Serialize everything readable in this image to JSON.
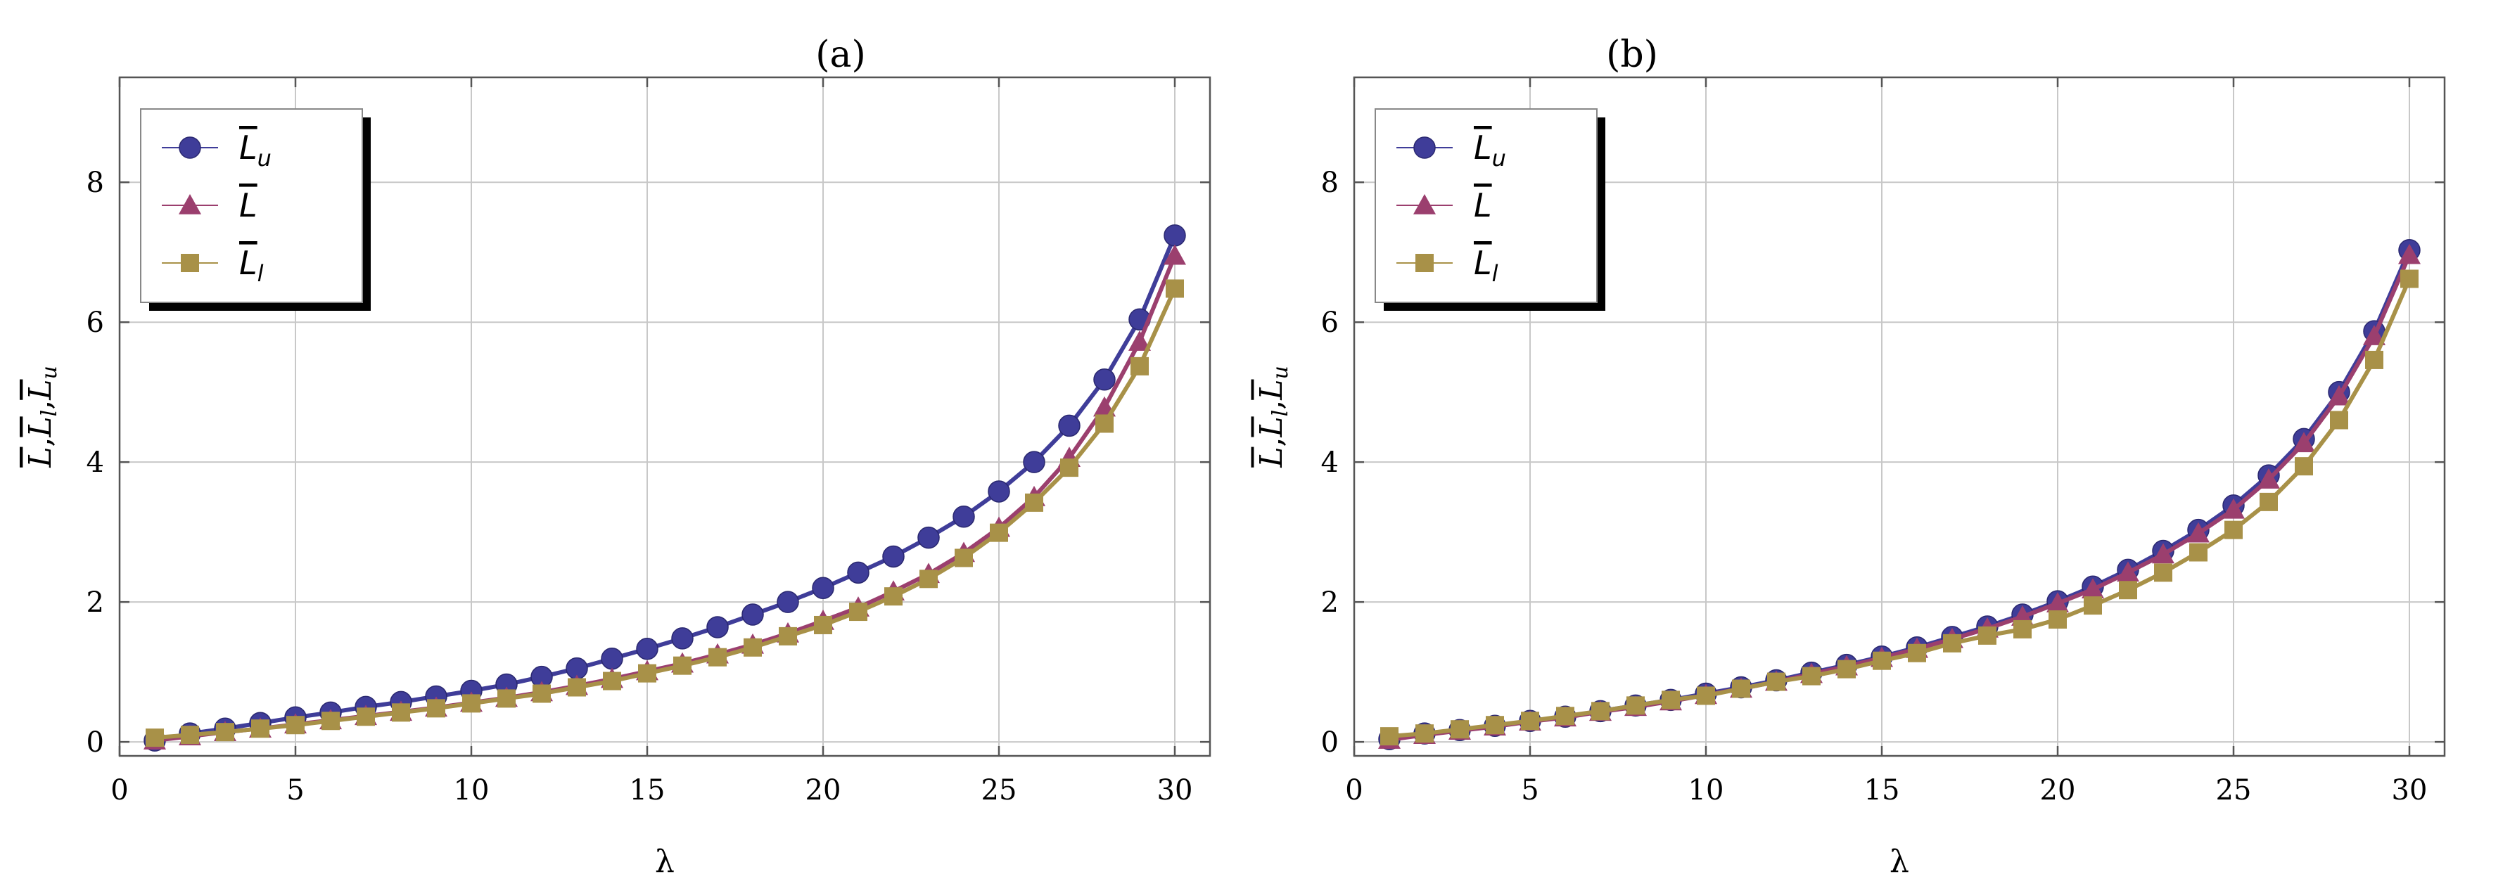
{
  "chart_data": [
    {
      "type": "line",
      "title": "(a)",
      "xlabel": "λ",
      "ylabel_parts": [
        "L",
        ",",
        "L",
        "l",
        ",",
        "L",
        "u"
      ],
      "xlim": [
        0,
        31
      ],
      "ylim": [
        -0.2,
        9.5
      ],
      "xticks": [
        0,
        5,
        10,
        15,
        20,
        25,
        30
      ],
      "yticks": [
        0,
        2,
        4,
        6,
        8
      ],
      "grid": true,
      "legend_position": "top-left",
      "x": [
        1,
        2,
        3,
        4,
        5,
        6,
        7,
        8,
        9,
        10,
        11,
        12,
        13,
        14,
        15,
        16,
        17,
        18,
        19,
        20,
        21,
        22,
        23,
        24,
        25,
        26,
        27,
        28,
        29,
        30
      ],
      "series": [
        {
          "name": "L_u",
          "label_main": "L",
          "label_sub": "u",
          "color": "#3f3d99",
          "marker": "circle",
          "values": [
            0.02,
            0.12,
            0.19,
            0.27,
            0.35,
            0.42,
            0.5,
            0.57,
            0.65,
            0.73,
            0.82,
            0.93,
            1.05,
            1.19,
            1.33,
            1.48,
            1.64,
            1.82,
            2.0,
            2.2,
            2.42,
            2.65,
            2.92,
            3.22,
            3.58,
            4.0,
            4.52,
            5.18,
            6.04,
            7.24
          ]
        },
        {
          "name": "L",
          "label_main": "L",
          "label_sub": "",
          "color": "#9b3f6e",
          "marker": "triangle",
          "values": [
            0.02,
            0.08,
            0.14,
            0.19,
            0.25,
            0.31,
            0.37,
            0.43,
            0.49,
            0.56,
            0.63,
            0.71,
            0.8,
            0.9,
            1.01,
            1.12,
            1.25,
            1.39,
            1.55,
            1.73,
            1.92,
            2.15,
            2.4,
            2.7,
            3.06,
            3.5,
            4.06,
            4.78,
            5.72,
            6.95
          ]
        },
        {
          "name": "L_l",
          "label_main": "L",
          "label_sub": "l",
          "color": "#a89148",
          "marker": "square",
          "values": [
            0.06,
            0.1,
            0.14,
            0.19,
            0.24,
            0.3,
            0.36,
            0.42,
            0.48,
            0.55,
            0.62,
            0.69,
            0.78,
            0.87,
            0.98,
            1.09,
            1.21,
            1.35,
            1.51,
            1.67,
            1.86,
            2.08,
            2.33,
            2.63,
            2.99,
            3.42,
            3.92,
            4.55,
            5.37,
            6.48
          ]
        }
      ]
    },
    {
      "type": "line",
      "title": "(b)",
      "xlabel": "λ",
      "ylabel_parts": [
        "L",
        ",",
        "L",
        "l",
        ",",
        "L",
        "u"
      ],
      "xlim": [
        0,
        31
      ],
      "ylim": [
        -0.2,
        9.5
      ],
      "xticks": [
        0,
        5,
        10,
        15,
        20,
        25,
        30
      ],
      "yticks": [
        0,
        2,
        4,
        6,
        8
      ],
      "grid": true,
      "legend_position": "top-left",
      "x": [
        1,
        2,
        3,
        4,
        5,
        6,
        7,
        8,
        9,
        10,
        11,
        12,
        13,
        14,
        15,
        16,
        17,
        18,
        19,
        20,
        21,
        22,
        23,
        24,
        25,
        26,
        27,
        28,
        29,
        30
      ],
      "series": [
        {
          "name": "L_u",
          "label_main": "L",
          "label_sub": "u",
          "color": "#3f3d99",
          "marker": "circle",
          "values": [
            0.04,
            0.12,
            0.17,
            0.23,
            0.3,
            0.36,
            0.44,
            0.52,
            0.6,
            0.69,
            0.78,
            0.88,
            0.99,
            1.1,
            1.22,
            1.35,
            1.5,
            1.65,
            1.82,
            2.01,
            2.22,
            2.46,
            2.73,
            3.03,
            3.38,
            3.81,
            4.33,
            5.0,
            5.87,
            7.03
          ]
        },
        {
          "name": "L",
          "label_main": "L",
          "label_sub": "",
          "color": "#9b3f6e",
          "marker": "triangle",
          "values": [
            0.03,
            0.1,
            0.16,
            0.22,
            0.29,
            0.35,
            0.43,
            0.5,
            0.58,
            0.67,
            0.76,
            0.86,
            0.97,
            1.08,
            1.2,
            1.33,
            1.47,
            1.62,
            1.79,
            1.98,
            2.18,
            2.42,
            2.68,
            2.98,
            3.32,
            3.75,
            4.27,
            4.94,
            5.8,
            6.96
          ]
        },
        {
          "name": "L_l",
          "label_main": "L",
          "label_sub": "l",
          "color": "#a89148",
          "marker": "square",
          "values": [
            0.08,
            0.12,
            0.18,
            0.24,
            0.3,
            0.37,
            0.44,
            0.52,
            0.6,
            0.66,
            0.76,
            0.86,
            0.94,
            1.04,
            1.16,
            1.27,
            1.41,
            1.52,
            1.61,
            1.75,
            1.95,
            2.17,
            2.42,
            2.71,
            3.03,
            3.43,
            3.94,
            4.6,
            5.46,
            6.62
          ]
        }
      ]
    }
  ]
}
